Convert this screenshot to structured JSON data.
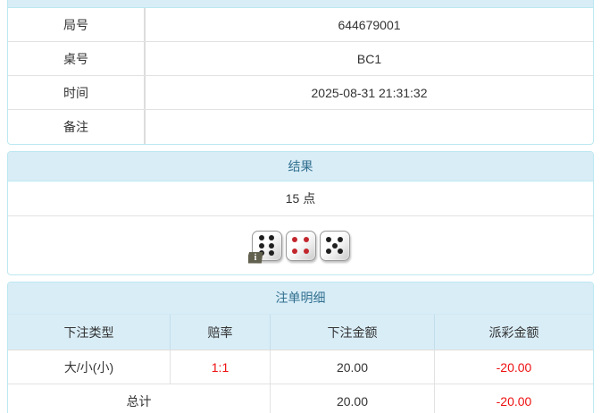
{
  "info_panel": {
    "rows": [
      {
        "label": "局号",
        "value": "644679001"
      },
      {
        "label": "桌号",
        "value": "BC1"
      },
      {
        "label": "时间",
        "value": "2025-08-31 21:31:32"
      },
      {
        "label": "备注",
        "value": ""
      }
    ]
  },
  "result_panel": {
    "title": "结果",
    "points": "15 点",
    "dice": [
      {
        "value": 6,
        "color": "#1f1f1f"
      },
      {
        "value": 4,
        "color": "#c2272d"
      },
      {
        "value": 5,
        "color": "#1f1f1f"
      }
    ],
    "info_badge_label": "i"
  },
  "bets_panel": {
    "title": "注单明细",
    "columns": [
      "下注类型",
      "赔率",
      "下注金额",
      "派彩金额"
    ],
    "rows": [
      {
        "bet_type": "大/小(小)",
        "odds": "1:1",
        "bet_amount": "20.00",
        "payout_amount": "-20.00"
      }
    ],
    "total_row": {
      "label": "总计",
      "bet_amount": "20.00",
      "payout_amount": "-20.00"
    }
  },
  "colors": {
    "heading_bg": "#d9edf7",
    "heading_text": "#31708f",
    "panel_border": "#bce8f1",
    "row_border": "#dddddd",
    "negative_red": "#ee1111",
    "die_black": "#1f1f1f",
    "die_red": "#c2272d",
    "body_text": "#333333"
  }
}
